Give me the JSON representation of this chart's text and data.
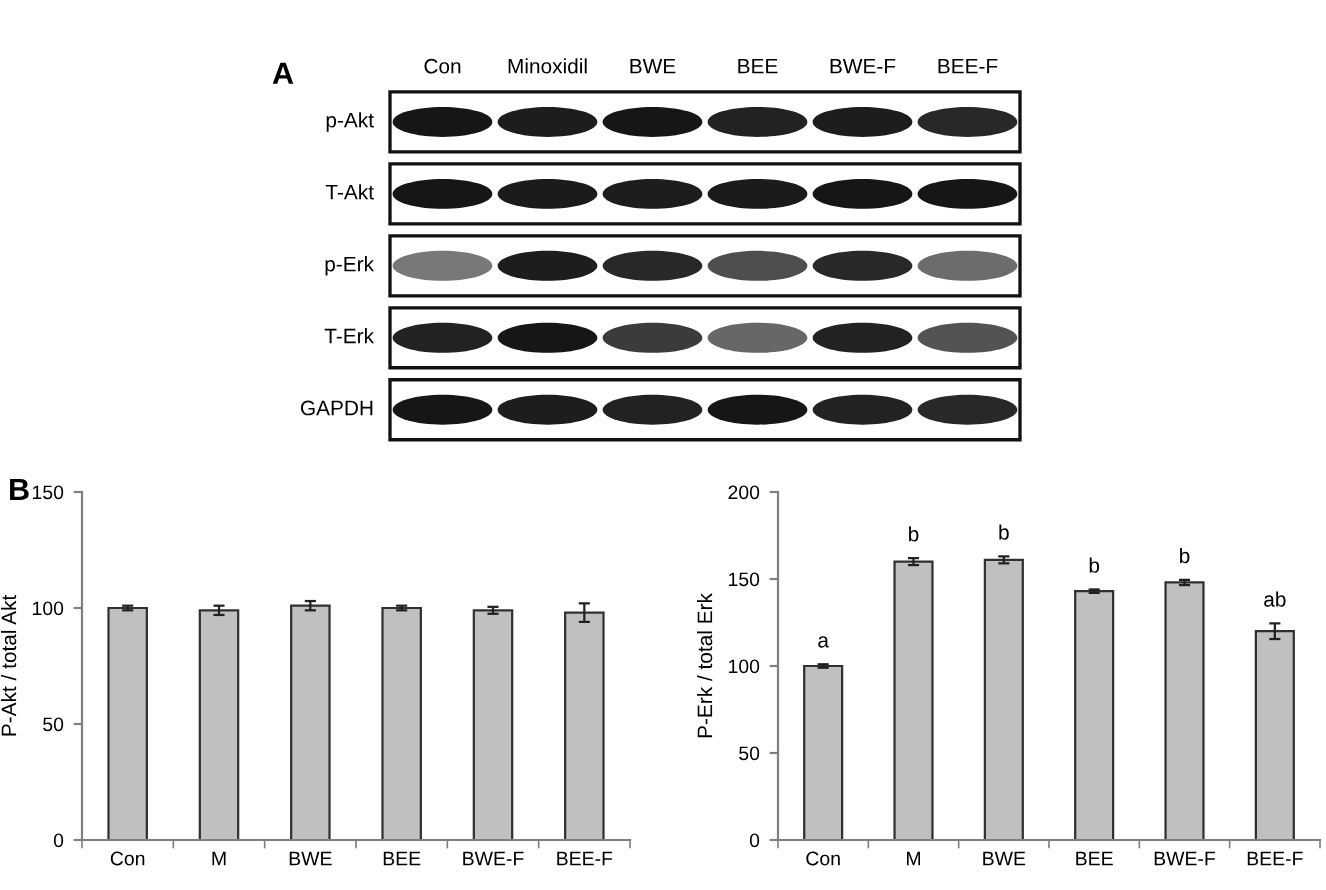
{
  "chart_data": [
    {
      "type": "other",
      "title": "A",
      "categories": [
        "Con",
        "Minoxidil",
        "BWE",
        "BEE",
        "BWE-F",
        "BEE-F"
      ],
      "y_categories": [
        "p-Akt",
        "T-Akt",
        "p-Erk",
        "T-Erk",
        "GAPDH"
      ]
    },
    {
      "type": "bar",
      "annotations": [
        "B"
      ],
      "ylabel": "P-Akt / total Akt",
      "categories": [
        "Con",
        "M",
        "BWE",
        "BEE",
        "BWE-F",
        "BEE-F"
      ],
      "values": [
        100,
        99,
        101,
        100,
        99,
        98
      ],
      "errors": [
        1,
        2,
        2,
        1,
        1.5,
        4
      ],
      "color": "#c0c0c0",
      "ylim": [
        0,
        150
      ],
      "yticks": [
        0,
        50,
        100,
        150
      ]
    },
    {
      "type": "bar",
      "ylabel": "P-Erk / total Erk",
      "categories": [
        "Con",
        "M",
        "BWE",
        "BEE",
        "BWE-F",
        "BEE-F"
      ],
      "values": [
        100,
        160,
        161,
        143,
        148,
        120
      ],
      "errors": [
        1,
        2,
        2,
        1,
        1.5,
        4.5
      ],
      "color": "#c0c0c0",
      "ylim": [
        0,
        200
      ],
      "yticks": [
        0,
        50,
        100,
        150,
        200
      ],
      "annotations": [
        {
          "text": "a",
          "x": "Con",
          "y": 100
        },
        {
          "text": "b",
          "x": "M",
          "y": 160
        },
        {
          "text": "b",
          "x": "BWE",
          "y": 161
        },
        {
          "text": "b",
          "x": "BEE",
          "y": 143
        },
        {
          "text": "b",
          "x": "BWE-F",
          "y": 148
        },
        {
          "text": "ab",
          "x": "BEE-F",
          "y": 120
        }
      ]
    }
  ]
}
